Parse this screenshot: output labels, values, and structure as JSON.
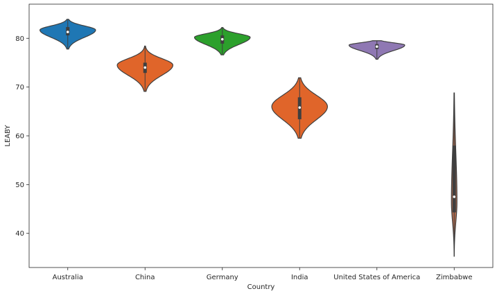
{
  "chart_data": {
    "type": "violin",
    "xlabel": "Country",
    "ylabel": "LEABY",
    "ylim": [
      33,
      87
    ],
    "yticks": [
      40,
      50,
      60,
      70,
      80
    ],
    "grid": false,
    "categories": [
      "Australia",
      "China",
      "Germany",
      "India",
      "United States of America",
      "Zimbabwe"
    ],
    "series": [
      {
        "category": "Australia",
        "color": "#1f77b4",
        "min": 77.8,
        "q1": 80.6,
        "median": 81.3,
        "q3": 82.3,
        "max": 83.9,
        "mode": 81.7
      },
      {
        "category": "China",
        "color": "#e0652a",
        "min": 69.1,
        "q1": 72.9,
        "median": 74.0,
        "q3": 75.0,
        "max": 78.4,
        "mode": 74.5
      },
      {
        "category": "Germany",
        "color": "#2ca02c",
        "min": 76.6,
        "q1": 78.9,
        "median": 79.8,
        "q3": 80.6,
        "max": 82.2,
        "mode": 80.2
      },
      {
        "category": "India",
        "color": "#e0652a",
        "min": 59.5,
        "q1": 63.4,
        "median": 65.8,
        "q3": 67.9,
        "max": 71.9,
        "mode": 66.0
      },
      {
        "category": "United States of America",
        "color": "#8f78b3",
        "min": 75.7,
        "q1": 77.8,
        "median": 78.3,
        "q3": 78.8,
        "max": 79.5,
        "mode": 78.6
      },
      {
        "category": "Zimbabwe",
        "color": "#b06a4d",
        "min": 35.3,
        "q1": 44.3,
        "median": 47.5,
        "q3": 58.0,
        "max": 68.8,
        "mode": 46.5
      }
    ]
  }
}
